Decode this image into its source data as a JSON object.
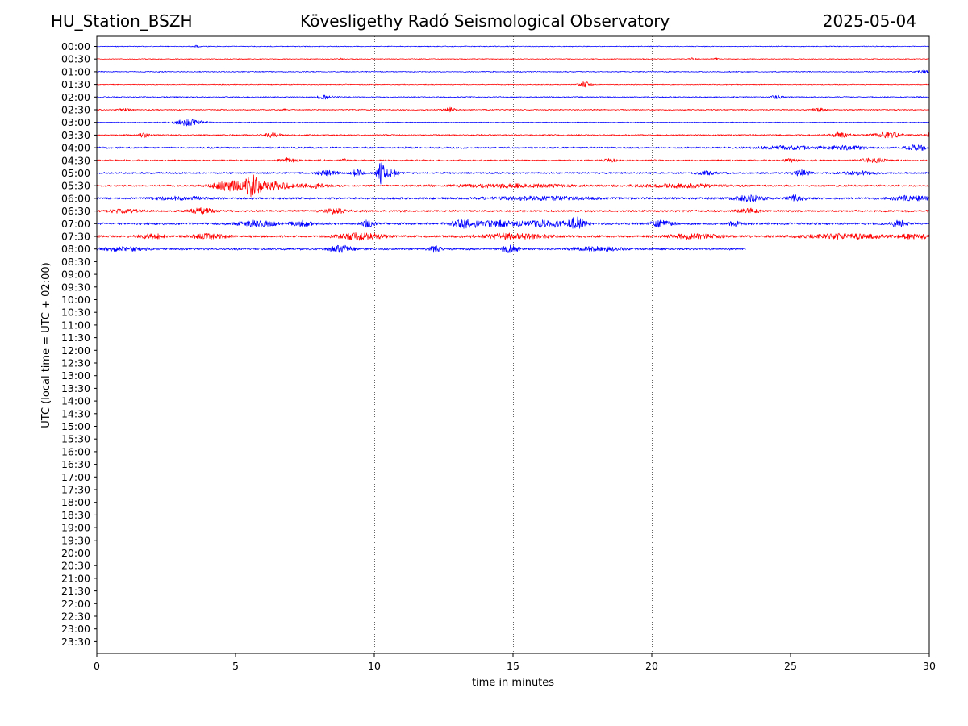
{
  "header": {
    "station": "HU_Station_BSZH",
    "title": "Kövesligethy Radó Seismological Observatory",
    "date": "2025-05-04"
  },
  "chart_data": {
    "type": "line",
    "title": "Kövesligethy Radó Seismological Observatory",
    "xlabel": "time in minutes",
    "ylabel": "UTC (local time = UTC + 02:00)",
    "xlim": [
      0,
      30
    ],
    "xticks": [
      0,
      5,
      10,
      15,
      20,
      25,
      30
    ],
    "xtick_labels": [
      "0",
      "5",
      "10",
      "15",
      "20",
      "25",
      "30"
    ],
    "vertical_grid_minutes": [
      5,
      10,
      15,
      20,
      25
    ],
    "row_labels": [
      "00:00",
      "00:30",
      "01:00",
      "01:30",
      "02:00",
      "02:30",
      "03:00",
      "03:30",
      "04:00",
      "04:30",
      "05:00",
      "05:30",
      "06:00",
      "06:30",
      "07:00",
      "07:30",
      "08:00",
      "08:30",
      "09:00",
      "09:30",
      "10:00",
      "10:30",
      "11:00",
      "11:30",
      "12:00",
      "12:30",
      "13:00",
      "13:30",
      "14:00",
      "14:30",
      "15:00",
      "15:30",
      "16:00",
      "16:30",
      "17:00",
      "17:30",
      "18:00",
      "18:30",
      "19:00",
      "19:30",
      "20:00",
      "20:30",
      "21:00",
      "21:30",
      "22:00",
      "22:30",
      "23:00",
      "23:30"
    ],
    "trace_colors": [
      "#0000ff",
      "#ff0000"
    ],
    "traces": [
      {
        "row": "00:00",
        "end_minute": 30,
        "noise": 0.6,
        "events": [
          [
            3.6,
            0.1,
            1.5
          ]
        ]
      },
      {
        "row": "00:30",
        "end_minute": 30,
        "noise": 0.6,
        "events": [
          [
            8.8,
            0.08,
            1.5
          ],
          [
            21.5,
            0.1,
            1.5
          ],
          [
            22.3,
            0.1,
            1.5
          ]
        ]
      },
      {
        "row": "01:00",
        "end_minute": 30,
        "noise": 0.7,
        "events": [
          [
            29.8,
            0.2,
            1.8
          ]
        ]
      },
      {
        "row": "01:30",
        "end_minute": 30,
        "noise": 0.6,
        "events": [
          [
            17.6,
            0.2,
            3.5
          ]
        ]
      },
      {
        "row": "02:00",
        "end_minute": 30,
        "noise": 0.8,
        "events": [
          [
            8.2,
            0.3,
            2.0
          ],
          [
            24.5,
            0.2,
            1.8
          ]
        ]
      },
      {
        "row": "02:30",
        "end_minute": 30,
        "noise": 0.8,
        "events": [
          [
            1.0,
            0.2,
            1.5
          ],
          [
            6.7,
            0.1,
            1.5
          ],
          [
            12.7,
            0.2,
            2.5
          ],
          [
            26.0,
            0.2,
            2.5
          ]
        ]
      },
      {
        "row": "03:00",
        "end_minute": 30,
        "noise": 0.6,
        "events": [
          [
            3.3,
            0.5,
            4.0
          ]
        ]
      },
      {
        "row": "03:30",
        "end_minute": 30,
        "noise": 1.0,
        "events": [
          [
            1.7,
            0.2,
            3.0
          ],
          [
            6.3,
            0.3,
            2.5
          ],
          [
            26.8,
            0.4,
            3.0
          ],
          [
            28.5,
            0.5,
            3.0
          ],
          [
            30.0,
            0.1,
            3.0
          ]
        ]
      },
      {
        "row": "04:00",
        "end_minute": 30,
        "noise": 1.2,
        "events": [
          [
            25.0,
            1.0,
            2.0
          ],
          [
            27.0,
            0.8,
            2.0
          ],
          [
            29.6,
            0.4,
            3.5
          ]
        ]
      },
      {
        "row": "04:30",
        "end_minute": 30,
        "noise": 1.1,
        "events": [
          [
            6.9,
            0.3,
            2.5
          ],
          [
            8.9,
            0.1,
            2.0
          ],
          [
            18.5,
            0.2,
            2.0
          ],
          [
            25.0,
            0.2,
            2.0
          ],
          [
            28.0,
            0.4,
            3.0
          ]
        ]
      },
      {
        "row": "05:00",
        "end_minute": 30,
        "noise": 1.3,
        "events": [
          [
            8.3,
            0.4,
            2.5
          ],
          [
            9.4,
            0.2,
            5.0
          ],
          [
            10.25,
            0.15,
            13.0
          ],
          [
            10.6,
            0.3,
            4.0
          ],
          [
            22.0,
            0.4,
            2.0
          ],
          [
            25.4,
            0.3,
            3.5
          ],
          [
            27.5,
            0.6,
            2.0
          ]
        ]
      },
      {
        "row": "05:30",
        "end_minute": 30,
        "noise": 1.3,
        "events": [
          [
            4.8,
            0.6,
            6.0
          ],
          [
            5.6,
            0.25,
            13.0
          ],
          [
            6.3,
            0.7,
            5.0
          ],
          [
            7.8,
            0.6,
            2.5
          ],
          [
            15.0,
            2.0,
            2.0
          ],
          [
            21.0,
            1.5,
            2.0
          ]
        ]
      },
      {
        "row": "06:00",
        "end_minute": 30,
        "noise": 1.5,
        "events": [
          [
            3.0,
            1.0,
            2.0
          ],
          [
            16.0,
            2.0,
            1.8
          ],
          [
            23.5,
            0.5,
            3.5
          ],
          [
            25.2,
            0.3,
            3.5
          ],
          [
            29.3,
            0.6,
            3.0
          ]
        ]
      },
      {
        "row": "06:30",
        "end_minute": 30,
        "noise": 1.5,
        "events": [
          [
            1.0,
            0.5,
            2.0
          ],
          [
            3.8,
            0.4,
            3.5
          ],
          [
            8.6,
            0.4,
            2.5
          ],
          [
            23.5,
            0.4,
            2.5
          ]
        ]
      },
      {
        "row": "07:00",
        "end_minute": 30,
        "noise": 1.6,
        "events": [
          [
            5.8,
            0.7,
            3.0
          ],
          [
            7.4,
            0.4,
            3.0
          ],
          [
            9.8,
            0.2,
            4.5
          ],
          [
            13.3,
            0.5,
            4.5
          ],
          [
            14.5,
            0.8,
            3.0
          ],
          [
            16.2,
            0.7,
            4.0
          ],
          [
            17.3,
            0.3,
            7.0
          ],
          [
            20.3,
            0.4,
            3.5
          ],
          [
            23.0,
            0.2,
            3.0
          ],
          [
            28.9,
            0.3,
            3.5
          ]
        ]
      },
      {
        "row": "07:30",
        "end_minute": 30,
        "noise": 1.6,
        "events": [
          [
            2.0,
            0.4,
            3.0
          ],
          [
            4.0,
            0.6,
            3.0
          ],
          [
            9.5,
            0.8,
            4.0
          ],
          [
            15.0,
            1.2,
            3.0
          ],
          [
            21.5,
            1.0,
            2.5
          ],
          [
            27.0,
            1.5,
            2.5
          ],
          [
            29.5,
            0.5,
            2.5
          ]
        ]
      },
      {
        "row": "08:00",
        "end_minute": 23.4,
        "noise": 1.5,
        "events": [
          [
            1.0,
            0.8,
            2.0
          ],
          [
            8.8,
            0.4,
            4.0
          ],
          [
            12.2,
            0.2,
            4.0
          ],
          [
            14.9,
            0.3,
            4.5
          ],
          [
            18.0,
            1.0,
            2.0
          ]
        ]
      }
    ]
  }
}
